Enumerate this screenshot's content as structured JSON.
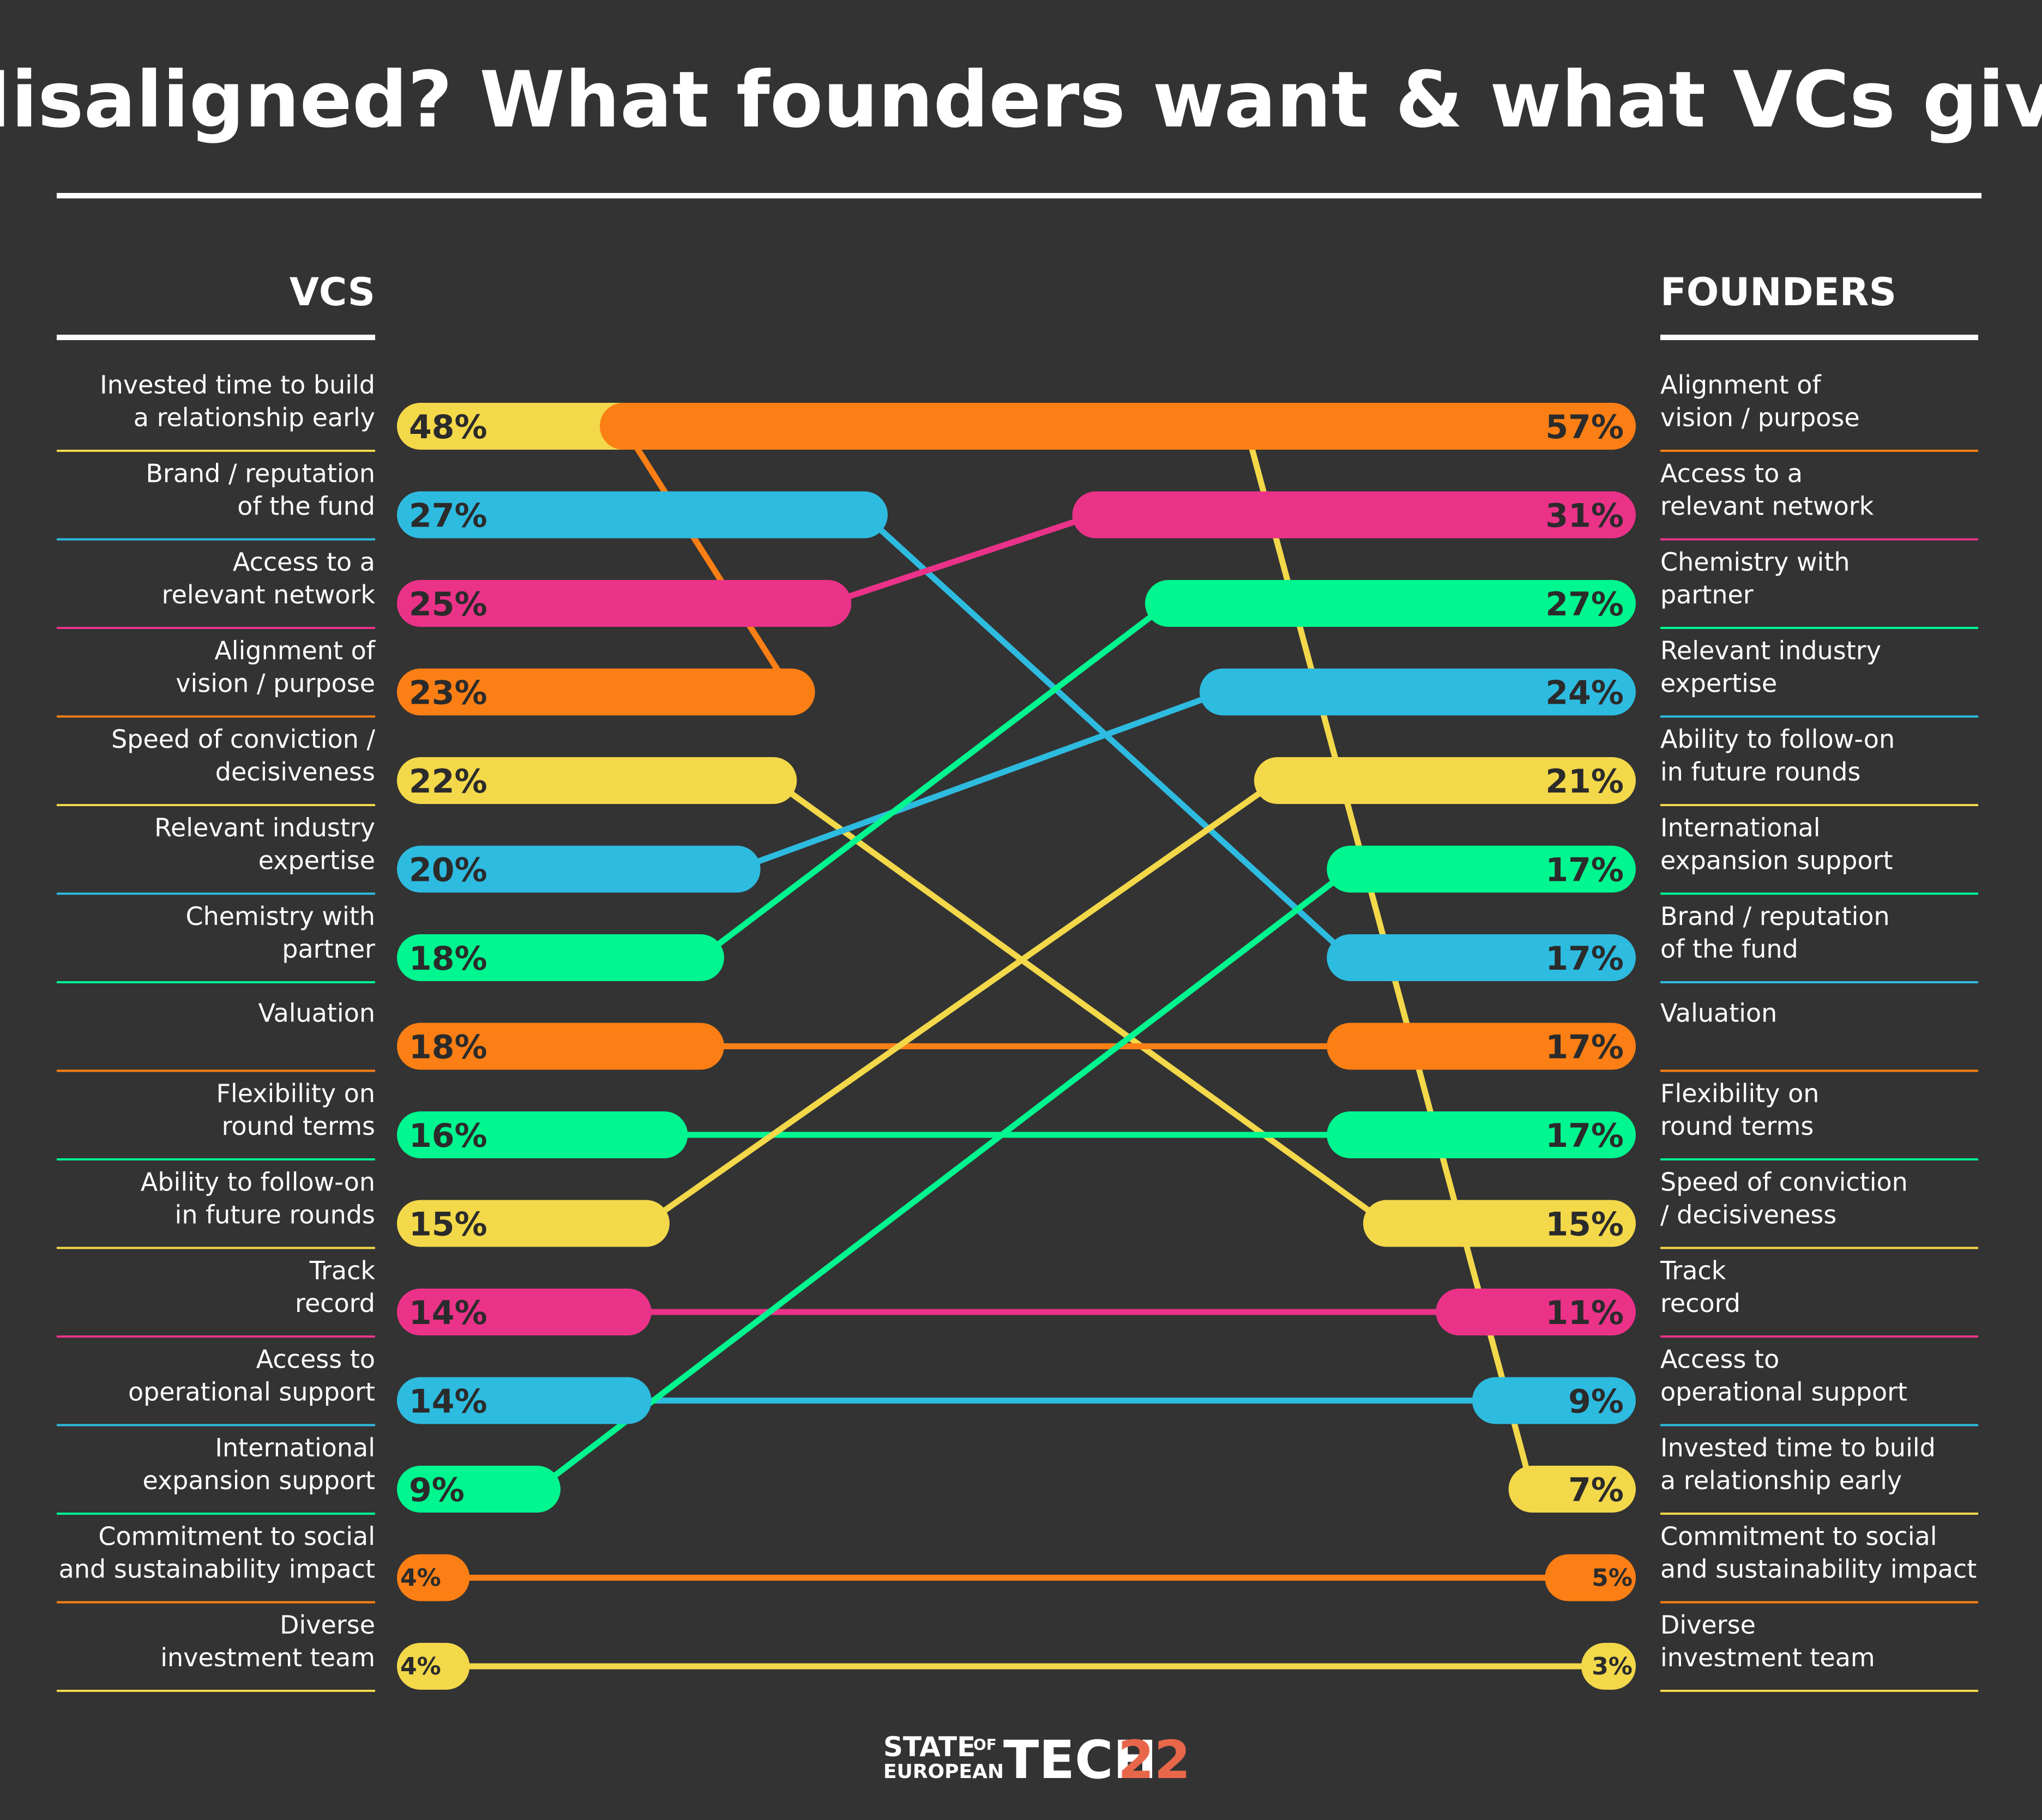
{
  "colors": {
    "background": "#333333",
    "yellow": "#f3d84a",
    "blue": "#2ebbe0",
    "pink": "#eb3289",
    "orange": "#fb7f15",
    "green": "#00f68f",
    "logo_accent": "#e8674a"
  },
  "logo": {
    "state": "STATE",
    "of": "OF",
    "european": "EUROPEAN",
    "tech": "TECH",
    "year": "22"
  },
  "chart_data": {
    "type": "slope",
    "title": "Misaligned? What founders want & what VCs give",
    "left_header": "VCS",
    "right_header": "FOUNDERS",
    "xmax": 60,
    "items": [
      {
        "id": "invested-time",
        "label": "Invested time to build a relationship early",
        "color": "yellow",
        "vc": 48,
        "vc_label": "48%",
        "vc_rank": 0,
        "founder": 7,
        "founder_label": "7%",
        "founder_rank": 12
      },
      {
        "id": "brand",
        "label": "Brand / reputation of the fund",
        "color": "blue",
        "vc": 27,
        "vc_label": "27%",
        "vc_rank": 1,
        "founder": 17,
        "founder_label": "17%",
        "founder_rank": 6
      },
      {
        "id": "network",
        "label": "Access to a relevant network",
        "color": "pink",
        "vc": 25,
        "vc_label": "25%",
        "vc_rank": 2,
        "founder": 31,
        "founder_label": "31%",
        "founder_rank": 1
      },
      {
        "id": "alignment",
        "label": "Alignment of vision / purpose",
        "color": "orange",
        "vc": 23,
        "vc_label": "23%",
        "vc_rank": 3,
        "founder": 57,
        "founder_label": "57%",
        "founder_rank": 0
      },
      {
        "id": "speed",
        "label": "Speed of conviction / decisiveness",
        "color": "yellow",
        "vc": 22,
        "vc_label": "22%",
        "vc_rank": 4,
        "founder": 15,
        "founder_label": "15%",
        "founder_rank": 9
      },
      {
        "id": "expertise",
        "label": "Relevant industry expertise",
        "color": "blue",
        "vc": 20,
        "vc_label": "20%",
        "vc_rank": 5,
        "founder": 24,
        "founder_label": "24%",
        "founder_rank": 3
      },
      {
        "id": "chemistry",
        "label": "Chemistry with partner",
        "color": "green",
        "vc": 18,
        "vc_label": "18%",
        "vc_rank": 6,
        "founder": 27,
        "founder_label": "27%",
        "founder_rank": 2
      },
      {
        "id": "valuation",
        "label": "Valuation",
        "color": "orange",
        "vc": 18,
        "vc_label": "18%",
        "vc_rank": 7,
        "founder": 17,
        "founder_label": "17%",
        "founder_rank": 7
      },
      {
        "id": "flexibility",
        "label": "Flexibility on round terms",
        "color": "green",
        "vc": 16,
        "vc_label": "16%",
        "vc_rank": 8,
        "founder": 17,
        "founder_label": "17%",
        "founder_rank": 8
      },
      {
        "id": "follow-on",
        "label": "Ability to follow-on in future rounds",
        "color": "yellow",
        "vc": 15,
        "vc_label": "15%",
        "vc_rank": 9,
        "founder": 21,
        "founder_label": "21%",
        "founder_rank": 4
      },
      {
        "id": "track-record",
        "label": "Track record",
        "color": "pink",
        "vc": 14,
        "vc_label": "14%",
        "vc_rank": 10,
        "founder": 11,
        "founder_label": "11%",
        "founder_rank": 10
      },
      {
        "id": "operational",
        "label": "Access to operational support",
        "color": "blue",
        "vc": 14,
        "vc_label": "14%",
        "vc_rank": 11,
        "founder": 9,
        "founder_label": "9%",
        "founder_rank": 11
      },
      {
        "id": "international",
        "label": "International expansion support",
        "color": "green",
        "vc": 9,
        "vc_label": "9%",
        "vc_rank": 12,
        "founder": 17,
        "founder_label": "17%",
        "founder_rank": 5
      },
      {
        "id": "social",
        "label": "Commitment to social and sustainability impact",
        "color": "orange",
        "vc": 4,
        "vc_label": "4%",
        "vc_rank": 13,
        "founder": 5,
        "founder_label": "5%",
        "founder_rank": 13
      },
      {
        "id": "diverse",
        "label": "Diverse investment team",
        "color": "yellow",
        "vc": 4,
        "vc_label": "4%",
        "vc_rank": 14,
        "founder": 3,
        "founder_label": "3%",
        "founder_rank": 14
      }
    ],
    "vc_label_lines": [
      [
        "Invested time to build",
        "a relationship early"
      ],
      [
        "Brand / reputation",
        "of the fund"
      ],
      [
        "Access to a",
        "relevant network"
      ],
      [
        "Alignment of",
        "vision / purpose"
      ],
      [
        "Speed of conviction /",
        "decisiveness"
      ],
      [
        "Relevant industry",
        "expertise"
      ],
      [
        "Chemistry with",
        "partner"
      ],
      [
        "Valuation"
      ],
      [
        "Flexibility on",
        "round terms"
      ],
      [
        "Ability to follow-on",
        "in future rounds"
      ],
      [
        "Track",
        "record"
      ],
      [
        "Access to",
        "operational support"
      ],
      [
        "International",
        "expansion support"
      ],
      [
        "Commitment to social",
        "and sustainability impact"
      ],
      [
        "Diverse",
        "investment team"
      ]
    ],
    "founder_label_lines": [
      [
        "Alignment of",
        "vision / purpose"
      ],
      [
        "Access to a",
        "relevant network"
      ],
      [
        "Chemistry with",
        "partner"
      ],
      [
        "Relevant industry",
        "expertise"
      ],
      [
        "Ability to follow-on",
        "in future rounds"
      ],
      [
        "International",
        "expansion support"
      ],
      [
        "Brand / reputation",
        "of the fund"
      ],
      [
        "Valuation"
      ],
      [
        "Flexibility on",
        "round terms"
      ],
      [
        "Speed of conviction",
        "/ decisiveness"
      ],
      [
        "Track",
        "record"
      ],
      [
        "Access to",
        "operational support"
      ],
      [
        "Invested time to build",
        "a relationship early"
      ],
      [
        "Commitment to social",
        "and sustainability impact"
      ],
      [
        "Diverse",
        "investment team"
      ]
    ]
  }
}
